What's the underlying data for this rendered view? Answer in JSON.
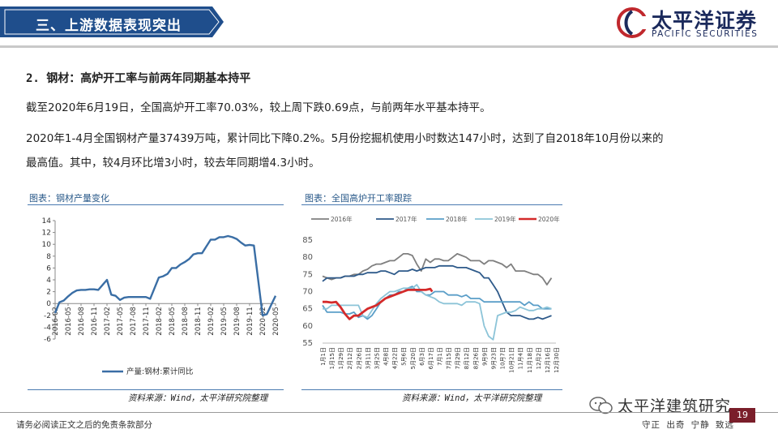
{
  "header": {
    "section_title": "三、上游数据表现突出",
    "logo_name": "太平洋证券",
    "logo_en": "PACIFIC SECURITIES"
  },
  "content": {
    "heading": "2. 钢材：高炉开工率与前两年同期基本持平",
    "paragraph1": "截至2020年6月19日，全国高炉开工率70.03%，较上周下跌0.69点，与前两年水平基本持平。",
    "paragraph2_line1": "2020年1-4月全国钢材产量37439万吨，累计同比下降0.2%。5月份挖掘机使用小时数达147小时，达到了自2018年10月份以来的",
    "paragraph2_line2": "最高值。其中，较4月环比增3小时，较去年同期增4.3小时。"
  },
  "figures": {
    "left_caption": "图表：钢材产量变化",
    "right_caption": "图表：全国高炉开工率跟踪",
    "left_source": "资料来源：Wind，太平洋研究院整理",
    "right_source": "资料来源：Wind，太平洋研究院整理"
  },
  "footer": {
    "disclaimer": "请务必阅读正文之后的免责条款部分",
    "motto": "守正 出奇 宁静 致远",
    "page_number": "19",
    "watermark": "太平洋建筑研究"
  },
  "colors": {
    "brand_navy": "#1b2a5c",
    "brand_red": "#c0282d",
    "banner_blue": "#1f4e8c",
    "page_box": "#7a1e2a"
  },
  "chart_data": [
    {
      "type": "line",
      "title": "",
      "xlabel": "",
      "ylabel": "",
      "ylim": [
        -6,
        14
      ],
      "yticks": [
        "14",
        "12",
        "10",
        "8",
        "6",
        "4",
        "2",
        "0",
        "-2",
        "-4",
        "-6"
      ],
      "x_tick_labels": [
        "2016-02",
        "2016-05",
        "2016-08",
        "2016-11",
        "2017-02",
        "2017-05",
        "2017-08",
        "2017-11",
        "2018-02",
        "2018-05",
        "2018-08",
        "2018-11",
        "2019-02",
        "2019-05",
        "2019-08",
        "2019-11",
        "2020-02",
        "2020-05"
      ],
      "series": [
        {
          "name": "产量:钢材:累计同比",
          "color": "#3a6ea5",
          "x": [
            "2016-02",
            "2016-03",
            "2016-04",
            "2016-05",
            "2016-06",
            "2016-07",
            "2016-08",
            "2016-09",
            "2016-10",
            "2016-11",
            "2016-12",
            "2017-02",
            "2017-03",
            "2017-04",
            "2017-05",
            "2017-06",
            "2017-07",
            "2017-08",
            "2017-09",
            "2017-10",
            "2017-11",
            "2017-12",
            "2018-02",
            "2018-03",
            "2018-04",
            "2018-05",
            "2018-06",
            "2018-07",
            "2018-08",
            "2018-09",
            "2018-10",
            "2018-11",
            "2018-12",
            "2019-02",
            "2019-03",
            "2019-04",
            "2019-05",
            "2019-06",
            "2019-07",
            "2019-08",
            "2019-09",
            "2019-10",
            "2019-11",
            "2019-12",
            "2020-02",
            "2020-03",
            "2020-04",
            "2020-05"
          ],
          "values": [
            -1.6,
            0.2,
            0.5,
            1.2,
            1.8,
            2.2,
            2.3,
            2.3,
            2.4,
            2.4,
            2.3,
            4.0,
            1.5,
            1.3,
            0.6,
            1.0,
            1.1,
            1.1,
            1.1,
            1.1,
            1.1,
            0.8,
            4.4,
            4.6,
            5.0,
            6.0,
            6.0,
            6.6,
            7.0,
            7.5,
            8.3,
            8.5,
            8.5,
            10.8,
            10.8,
            11.2,
            11.2,
            11.4,
            11.2,
            10.9,
            10.3,
            9.8,
            9.9,
            9.8,
            -2.0,
            -1.8,
            -0.2,
            1.3
          ]
        }
      ],
      "legend": "bottom"
    },
    {
      "type": "line",
      "title": "",
      "xlabel": "",
      "ylabel": "",
      "ylim": [
        55,
        85
      ],
      "yticks": [
        "85",
        "80",
        "75",
        "70",
        "65",
        "60",
        "55"
      ],
      "x_tick_labels": [
        "1月1日",
        "1月15日",
        "1月29日",
        "2月12日",
        "2月26日",
        "3月11日",
        "3月25日",
        "4月8日",
        "4月22日",
        "5月6日",
        "5月20日",
        "6月3日",
        "6月17日",
        "7月1日",
        "7月15日",
        "7月29日",
        "8月12日",
        "8月26日",
        "9月9日",
        "9月23日",
        "10月7日",
        "10月21日",
        "11月4日",
        "11月18日",
        "12月2日",
        "12月16日",
        "12月30日"
      ],
      "legend": "top",
      "series": [
        {
          "name": "2016年",
          "color": "#7f7f7f",
          "x": [
            0,
            7,
            14,
            21,
            28,
            35,
            42,
            49,
            56,
            63,
            70,
            77,
            84,
            91,
            98,
            105,
            112,
            119,
            126,
            133,
            140,
            147,
            154,
            161,
            168,
            175,
            182,
            189,
            196,
            203,
            210,
            217,
            224,
            231,
            238,
            245,
            252,
            259,
            266,
            273,
            280,
            287,
            294,
            301,
            308,
            315,
            322,
            329,
            336,
            343,
            350,
            357
          ],
          "values": [
            74.5,
            74,
            73.5,
            74,
            74,
            74.5,
            74.5,
            75,
            75,
            76,
            76.5,
            77.5,
            78,
            78,
            78.5,
            79,
            79,
            80,
            81,
            81,
            80.5,
            78,
            76,
            79.5,
            78.5,
            79.5,
            79.5,
            79,
            79,
            80,
            81,
            80.5,
            80,
            79,
            79,
            79,
            78,
            79,
            79,
            78.5,
            78,
            77,
            78,
            76,
            76,
            76,
            75.5,
            75,
            75,
            74,
            72,
            74
          ]
        },
        {
          "name": "2017年",
          "color": "#2e5a8a",
          "x": [
            0,
            7,
            14,
            21,
            28,
            35,
            42,
            49,
            56,
            63,
            70,
            77,
            84,
            91,
            98,
            105,
            112,
            119,
            126,
            133,
            140,
            147,
            154,
            161,
            168,
            175,
            182,
            189,
            196,
            203,
            210,
            217,
            224,
            231,
            238,
            245,
            252,
            259,
            266,
            273,
            280,
            287,
            294,
            301,
            308,
            315,
            322,
            329,
            336,
            343,
            350,
            357
          ],
          "values": [
            73,
            74,
            74,
            74,
            74,
            74.5,
            74.5,
            74.5,
            75,
            75,
            75.5,
            75.5,
            75.5,
            76,
            76,
            75.5,
            75,
            76,
            76,
            76,
            76.5,
            76,
            76.5,
            77,
            77,
            77,
            77.5,
            77.5,
            77.5,
            77.5,
            77,
            77,
            77,
            76.5,
            76,
            75.5,
            74,
            74,
            72,
            70,
            67,
            64,
            63,
            63,
            63,
            62.5,
            62,
            62,
            62.5,
            62,
            62.5,
            63
          ]
        },
        {
          "name": "2018年",
          "color": "#5a9ec8",
          "x": [
            0,
            7,
            14,
            21,
            28,
            35,
            42,
            49,
            56,
            63,
            70,
            77,
            84,
            91,
            98,
            105,
            112,
            119,
            126,
            133,
            140,
            147,
            154,
            161,
            168,
            175,
            182,
            189,
            196,
            203,
            210,
            217,
            224,
            231,
            238,
            245,
            252,
            259,
            266,
            273,
            280,
            287,
            294,
            301,
            308,
            315,
            322,
            329,
            336,
            343,
            350,
            357
          ],
          "values": [
            66,
            64,
            64,
            64,
            64,
            63.5,
            63.5,
            64,
            62.5,
            63,
            62,
            63,
            65,
            67,
            68,
            69,
            69,
            70,
            70,
            71,
            71.5,
            70,
            70,
            69,
            69,
            70,
            70,
            70,
            69,
            69,
            69,
            68.5,
            69,
            68,
            68,
            68,
            67,
            67,
            67,
            67,
            67,
            67,
            67,
            67,
            67,
            66,
            67,
            66,
            66,
            65,
            65,
            65
          ]
        },
        {
          "name": "2019年",
          "color": "#8cc4d8",
          "x": [
            0,
            7,
            14,
            21,
            28,
            35,
            42,
            49,
            56,
            63,
            70,
            77,
            84,
            91,
            98,
            105,
            112,
            119,
            126,
            133,
            140,
            147,
            154,
            161,
            168,
            175,
            182,
            189,
            196,
            203,
            210,
            217,
            224,
            231,
            238,
            245,
            252,
            259,
            266,
            273,
            280,
            287,
            294,
            301,
            308,
            315,
            322,
            329,
            336,
            343,
            350,
            357
          ],
          "values": [
            65,
            65,
            66,
            66,
            66,
            66,
            66,
            66,
            66,
            63,
            62.5,
            64.5,
            66.5,
            68,
            69,
            70,
            70,
            70.5,
            71,
            71,
            71,
            72,
            70,
            69,
            68.5,
            68,
            67,
            66.5,
            66.5,
            66.5,
            66.5,
            66,
            67,
            67,
            67,
            66.5,
            60,
            57,
            56,
            63,
            63.5,
            64,
            64,
            64.5,
            65.5,
            65,
            64.5,
            64.5,
            65,
            65,
            65.5,
            65
          ]
        },
        {
          "name": "2020年",
          "color": "#d42a2a",
          "x": [
            0,
            7,
            14,
            21,
            28,
            35,
            42,
            49,
            56,
            63,
            70,
            77,
            84,
            91,
            98,
            105,
            112,
            119,
            126,
            133,
            140,
            147,
            154,
            161,
            168,
            171
          ],
          "values": [
            67,
            67,
            66.8,
            67,
            65.5,
            63.5,
            62,
            63,
            63,
            64,
            65,
            65.5,
            66,
            67,
            68,
            68.5,
            69,
            69.5,
            70,
            70.5,
            70.5,
            70.5,
            70.5,
            70.5,
            70.8,
            70
          ]
        }
      ]
    }
  ]
}
